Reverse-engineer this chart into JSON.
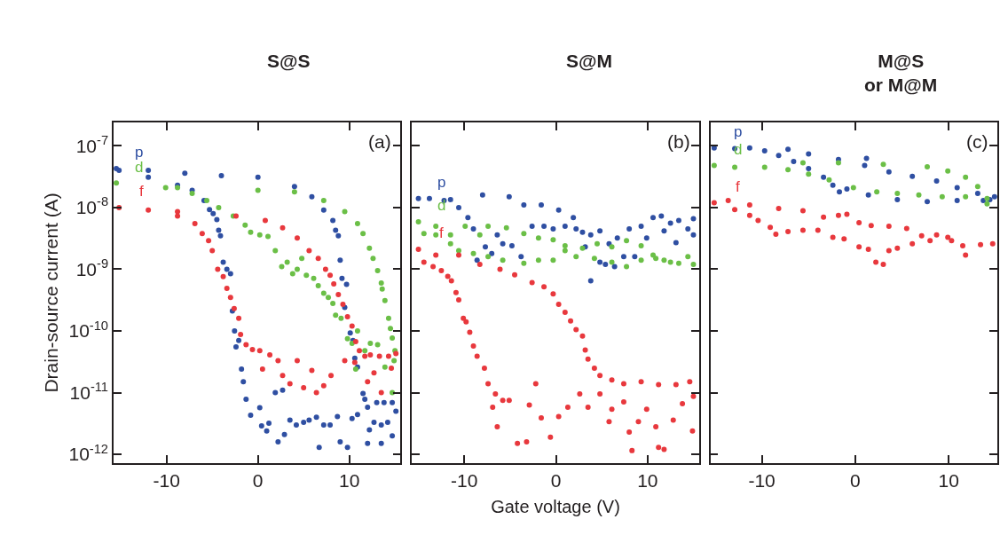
{
  "chart_data": [
    {
      "type": "scatter",
      "ylabel": "Drain-source current (A)",
      "annotations": [
        "(a)",
        "S@S"
      ],
      "log": "y",
      "marker": "circle",
      "grid": false,
      "legend": false,
      "xlim": [
        -15.8,
        15.6
      ],
      "xticks": [
        -10,
        0,
        10
      ],
      "ylim": [
        7.2e-13,
        2.4e-07
      ],
      "yticks": [
        {
          "value": 1e-12,
          "label": "10$^{-12}$"
        },
        {
          "value": 1e-11,
          "label": "10$^{-11}$"
        },
        {
          "value": 1e-10,
          "label": "10$^{-10}$"
        },
        {
          "value": 1e-09,
          "label": "10$^{-9}$"
        },
        {
          "value": 1e-08,
          "label": "10$^{-8}$"
        },
        {
          "value": 1e-07,
          "label": "10$^{-7}$"
        }
      ],
      "series": [
        {
          "name": "p",
          "color": "#2f4fa2",
          "x": [
            -15.5,
            -12,
            -8,
            -4,
            0,
            4,
            5.9,
            7.2,
            8.2,
            8.5,
            8.8,
            9.0,
            9.2,
            9.7,
            9.5,
            10.1,
            10.4,
            10.6,
            10.9,
            11.5,
            11.7,
            12.0,
            12.2,
            12.0,
            12.7,
            13.0,
            13.5,
            13.5,
            13.8,
            14.2,
            14.7,
            14.7,
            15.1,
            10.9,
            10.3,
            9.8,
            9.0,
            8.7,
            7.9,
            7.2,
            6.7,
            6.4,
            5.6,
            5.0,
            4.2,
            3.5,
            2.9,
            2.7,
            1.9,
            2.2,
            1.2,
            0.96,
            0.4,
            0.2,
            -0.8,
            -1.3,
            -1.6,
            -1.8,
            -2.1,
            -2.4,
            -2.56,
            -2.8,
            -3.0,
            -3.4,
            -3.8,
            -4.1,
            -4.3,
            -4.5,
            -4.9,
            -5.3,
            -5.9,
            -7.2,
            -8.8,
            -12,
            -15.2
          ],
          "values": [
            4.3e-08,
            4e-08,
            3.6e-08,
            3.3e-08,
            3.1e-08,
            2.2e-08,
            1.5e-08,
            9.1e-09,
            6.2e-09,
            4.3e-09,
            3.5e-09,
            1.4e-09,
            7.1e-10,
            5.7e-10,
            2.4e-10,
            9.3e-11,
            7e-11,
            3.6e-11,
            2.6e-11,
            9.7e-12,
            7.8e-12,
            5.8e-12,
            2.5e-12,
            1.5e-12,
            3.3e-12,
            6.9e-12,
            3e-12,
            1.5e-12,
            6.9e-12,
            3.3e-12,
            6.9e-12,
            2e-12,
            5e-12,
            4.4e-12,
            3.8e-12,
            1.3e-12,
            1.6e-12,
            4.1e-12,
            3e-12,
            3e-12,
            1.3e-12,
            4e-12,
            3.6e-12,
            3.3e-12,
            3e-12,
            3.6e-12,
            2.1e-12,
            1.1e-11,
            1e-11,
            1.6e-12,
            3.2e-12,
            2.4e-12,
            2.9e-12,
            5.7e-12,
            4.3e-12,
            7.8e-12,
            1.5e-11,
            2.4e-11,
            7e-11,
            5.5e-11,
            1e-10,
            2.1e-10,
            8.5e-10,
            1e-09,
            1.3e-09,
            3.5e-09,
            4.3e-09,
            6.4e-09,
            8e-09,
            9.3e-09,
            1.3e-08,
            1.9e-08,
            2.3e-08,
            3.1e-08,
            4e-08
          ]
        },
        {
          "name": "d",
          "color": "#6bbf47",
          "x": [
            -15.5,
            -8.8,
            0,
            4,
            7.2,
            9.5,
            10.9,
            11.5,
            12.2,
            12.6,
            13.1,
            13.5,
            13.6,
            13.9,
            14.3,
            14.5,
            14.7,
            15.0,
            14.9,
            14.7,
            13.9,
            13.1,
            12.3,
            11.7,
            10.9,
            10.7,
            10.3,
            9.8,
            9.1,
            8.5,
            8.2,
            7.7,
            7.2,
            6.6,
            6.1,
            5.3,
            4.8,
            4.3,
            3.8,
            3.2,
            2.6,
            1.9,
            1.1,
            0.2,
            -0.8,
            -1.4,
            -2.7,
            -4.3,
            -5.6,
            -7.2,
            -10.1
          ],
          "values": [
            2.5e-08,
            2.1e-08,
            1.9e-08,
            1.8e-08,
            1.3e-08,
            8.6e-09,
            5.5e-09,
            3.8e-09,
            2.2e-09,
            1.5e-09,
            9.5e-10,
            6e-10,
            4.8e-10,
            3.1e-10,
            1.6e-10,
            1.1e-10,
            7.7e-11,
            4.8e-11,
            3.3e-11,
            1e-11,
            2.6e-11,
            6e-11,
            6.3e-11,
            4.8e-11,
            1e-10,
            2.4e-11,
            6.3e-11,
            7.5e-11,
            1.6e-10,
            1.8e-10,
            2.8e-10,
            3.5e-10,
            4.1e-10,
            5.4e-10,
            7.1e-10,
            8e-10,
            1.5e-09,
            1e-09,
            8.5e-10,
            1.3e-09,
            1.1e-09,
            2e-09,
            3.4e-09,
            3.6e-09,
            4e-09,
            5.2e-09,
            7.3e-09,
            1e-08,
            1.3e-08,
            1.7e-08,
            2.1e-08
          ]
        },
        {
          "name": "f",
          "color": "#e8383d",
          "x": [
            -15.2,
            -8.8,
            -2.4,
            0.8,
            2.7,
            4.3,
            5.6,
            6.6,
            7.4,
            7.9,
            8.3,
            8.8,
            9.3,
            9.8,
            10.3,
            10.7,
            11.1,
            11.7,
            12.3,
            13.3,
            14.3,
            15.1,
            14.6,
            13.5,
            12.7,
            12.0,
            10.6,
            9.5,
            8.0,
            7.2,
            6.4,
            5.9,
            5.0,
            4.3,
            3.5,
            2.7,
            2.2,
            1.3,
            0.5,
            0.2,
            -0.6,
            -1.3,
            -1.9,
            -2.1,
            -2.6,
            -3.0,
            -3.4,
            -3.8,
            -4.4,
            -5.0,
            -5.4,
            -6.1,
            -6.9,
            -8.8,
            -12
          ],
          "values": [
            1e-08,
            8.6e-09,
            7.3e-09,
            6.2e-09,
            4.7e-09,
            3.2e-09,
            2e-09,
            1.5e-09,
            1e-09,
            8e-10,
            5.8e-10,
            3.9e-10,
            2.7e-10,
            1.7e-10,
            1.2e-10,
            6.7e-11,
            4.8e-11,
            3.9e-11,
            4.1e-11,
            3.9e-11,
            3.9e-11,
            4.3e-11,
            2.5e-11,
            1e-11,
            2.1e-11,
            1.5e-11,
            3.1e-11,
            3.3e-11,
            1.9e-11,
            1.3e-11,
            1e-11,
            2.3e-11,
            1.2e-11,
            3.3e-11,
            1.4e-11,
            1.9e-11,
            3.3e-11,
            4.1e-11,
            2.4e-11,
            4.8e-11,
            5e-11,
            6e-11,
            8.8e-11,
            1.6e-10,
            2.3e-10,
            3.5e-10,
            4.9e-10,
            7.6e-10,
            1e-09,
            2e-09,
            2.9e-09,
            3.8e-09,
            5.5e-09,
            7.3e-09,
            9.1e-09
          ]
        }
      ]
    },
    {
      "type": "scatter",
      "xlabel": "Gate voltage (V)",
      "annotations": [
        "(b)",
        "S@M"
      ],
      "log": "y",
      "marker": "circle",
      "grid": false,
      "legend": false,
      "tick_labels": "x",
      "xlim": [
        -15.7,
        15.6
      ],
      "xticks": [
        -10,
        0,
        10
      ],
      "ylim": [
        7.2e-13,
        2.4e-07
      ],
      "yticks": [
        {
          "value": 1e-12,
          "label": null
        },
        {
          "value": 1e-11,
          "label": null
        },
        {
          "value": 1e-10,
          "label": null
        },
        {
          "value": 1e-09,
          "label": null
        },
        {
          "value": 1e-08,
          "label": null
        },
        {
          "value": 1e-07,
          "label": null
        }
      ],
      "series": [
        {
          "name": "p",
          "color": "#2f4fa2",
          "x": [
            -15.0,
            -11.5,
            -8.0,
            -5.1,
            -3.5,
            -1.6,
            0.3,
            1.9,
            2.9,
            3.8,
            4.8,
            5.8,
            6.7,
            8.0,
            9.3,
            10.6,
            11.5,
            12.5,
            13.4,
            14.4,
            15.0,
            15.0,
            13.1,
            11.8,
            9.9,
            8.6,
            7.4,
            6.4,
            5.4,
            4.8,
            3.8,
            3.2,
            2.2,
            1.0,
            -0.3,
            -1.3,
            -2.6,
            -3.8,
            -4.8,
            -5.8,
            -6.4,
            -7.0,
            -7.7,
            -8.6,
            -9.0,
            -9.6,
            -10.6,
            -12.2,
            -13.8
          ],
          "values": [
            1.4e-08,
            1.35e-08,
            1.6e-08,
            1.5e-08,
            1.1e-08,
            1.1e-08,
            9.1e-09,
            6.9e-09,
            4e-09,
            3.6e-09,
            4.2e-09,
            2.6e-09,
            3.2e-09,
            4.5e-09,
            5e-09,
            6.9e-09,
            7.3e-09,
            5.6e-09,
            6.2e-09,
            4.5e-09,
            6.6e-09,
            3.6e-09,
            2.7e-09,
            4.2e-09,
            3.2e-09,
            1.6e-09,
            1.6e-09,
            1.1e-09,
            1.2e-09,
            1.3e-09,
            6.5e-10,
            2.3e-09,
            4.5e-09,
            5e-09,
            4.5e-09,
            5e-09,
            5e-09,
            1.6e-09,
            2.4e-09,
            2.6e-09,
            3.6e-09,
            1.8e-09,
            2.3e-09,
            1.4e-09,
            4.5e-09,
            6.9e-09,
            1e-08,
            1.3e-08,
            1.4e-08
          ]
        },
        {
          "name": "d",
          "color": "#6bbf47",
          "x": [
            -15.0,
            -14.4,
            -13.1,
            -11.5,
            -9.9,
            -8.3,
            -7.4,
            -5.4,
            -3.5,
            -1.9,
            -0.3,
            1.0,
            2.9,
            4.5,
            6.1,
            7.7,
            9.3,
            10.6,
            11.8,
            13.4,
            15.0,
            14.4,
            12.5,
            10.9,
            9.3,
            7.7,
            6.1,
            4.2,
            2.2,
            1.0,
            -0.3,
            -1.9,
            -3.5,
            -5.8,
            -7.4,
            -9.0,
            -10.6,
            -11.5,
            -13.1
          ],
          "values": [
            5.9e-09,
            3.8e-09,
            5e-09,
            3.6e-09,
            5e-09,
            3.6e-09,
            5e-09,
            4.7e-09,
            3.8e-09,
            3.2e-09,
            3e-09,
            2.4e-09,
            2.2e-09,
            2.6e-09,
            2.3e-09,
            2.9e-09,
            2.4e-09,
            1.7e-09,
            1.4e-09,
            1.25e-09,
            1.2e-09,
            1.6e-09,
            1.3e-09,
            1.5e-09,
            1.4e-09,
            1.1e-09,
            1.3e-09,
            1.5e-09,
            1.6e-09,
            2e-09,
            1.4e-09,
            1.4e-09,
            1.25e-09,
            1.4e-09,
            1.6e-09,
            1.8e-09,
            2e-09,
            2.6e-09,
            3.6e-09
          ]
        },
        {
          "name": "f",
          "color": "#e8383d",
          "x": [
            -15.0,
            -13.1,
            -10.6,
            -8.3,
            -6.1,
            -4.5,
            -2.6,
            -1.3,
            -0.3,
            0.3,
            1.0,
            1.6,
            2.2,
            2.9,
            3.2,
            3.5,
            4.2,
            4.8,
            6.1,
            7.4,
            9.3,
            11.2,
            13.1,
            14.6,
            15.0,
            14.9,
            13.8,
            12.8,
            11.8,
            11.2,
            10.9,
            9.9,
            9.0,
            8.3,
            8.0,
            7.4,
            6.1,
            5.8,
            4.8,
            3.5,
            2.6,
            1.3,
            0.3,
            -0.6,
            -1.6,
            -2.2,
            -2.9,
            -3.2,
            -4.2,
            -5.1,
            -5.8,
            -6.4,
            -6.9,
            -6.6,
            -7.4,
            -7.8,
            -8.6,
            -9.0,
            -9.4,
            -9.8,
            -10.1,
            -10.6,
            -10.9,
            -11.4,
            -11.8,
            -12.5,
            -13.4,
            -14.4
          ],
          "values": [
            2.1e-09,
            1.7e-09,
            1.7e-09,
            1.2e-09,
            1e-09,
            8.1e-10,
            6.1e-10,
            5.2e-10,
            4e-10,
            2.7e-10,
            2e-10,
            1.45e-10,
            1.05e-10,
            8.3e-11,
            4.9e-11,
            3.5e-11,
            2.5e-11,
            1.9e-11,
            1.6e-11,
            1.4e-11,
            1.5e-11,
            1.35e-11,
            1.35e-11,
            1.5e-11,
            8.7e-12,
            2.4e-12,
            6.6e-12,
            3.6e-12,
            1.2e-12,
            1.3e-12,
            2.8e-12,
            5.4e-12,
            3.4e-12,
            1.15e-12,
            2.3e-12,
            7.1e-12,
            5.4e-12,
            3.4e-12,
            9.5e-12,
            5.8e-12,
            9.5e-12,
            5.8e-12,
            4.1e-12,
            1.9e-12,
            3.9e-12,
            1.4e-11,
            6.3e-12,
            1.6e-12,
            1.5e-12,
            7.5e-12,
            7.5e-12,
            2.8e-12,
            5.8e-12,
            9.5e-12,
            1.4e-11,
            2.5e-11,
            3.9e-11,
            5.7e-11,
            9.5e-11,
            1.4e-10,
            1.6e-10,
            3.2e-10,
            4.2e-10,
            6.5e-10,
            7.7e-10,
            9.5e-10,
            1.1e-09,
            1.3e-09
          ]
        }
      ]
    },
    {
      "type": "scatter",
      "annotations": [
        "(c)",
        "M@S\nor M@M"
      ],
      "log": "y",
      "marker": "circle",
      "grid": false,
      "legend": false,
      "tick_labels": "x",
      "xlim": [
        -15.5,
        15.2
      ],
      "xticks": [
        -10,
        0,
        10
      ],
      "ylim": [
        7.2e-13,
        2.4e-07
      ],
      "yticks": [
        {
          "value": 1e-12,
          "label": null
        },
        {
          "value": 1e-11,
          "label": null
        },
        {
          "value": 1e-10,
          "label": null
        },
        {
          "value": 1e-09,
          "label": null
        },
        {
          "value": 1e-08,
          "label": null
        },
        {
          "value": 1e-07,
          "label": null
        }
      ],
      "series": [
        {
          "name": "p",
          "color": "#2f4fa2",
          "x": [
            -15.1,
            -11.3,
            -7.2,
            -5.0,
            -1.8,
            1.0,
            3.6,
            6.1,
            8.7,
            10.9,
            13.1,
            14.4,
            14.9,
            13.7,
            10.9,
            7.7,
            4.5,
            1.4,
            -0.9,
            -2.4,
            -3.4,
            -5.0,
            -6.6,
            -8.2,
            -9.7,
            -12.9,
            -1.7,
            1.2
          ],
          "values": [
            9.3e-08,
            9.3e-08,
            8.8e-08,
            7.4e-08,
            6e-08,
            4.8e-08,
            3.8e-08,
            3.2e-08,
            2.7e-08,
            2.1e-08,
            1.7e-08,
            1.35e-08,
            1.5e-08,
            1.3e-08,
            1.3e-08,
            1.25e-08,
            1.35e-08,
            1.6e-08,
            2e-08,
            2.3e-08,
            3.1e-08,
            4.3e-08,
            5.6e-08,
            7e-08,
            8.3e-08,
            9e-08,
            1.8e-08,
            6.3e-08
          ]
        },
        {
          "name": "d",
          "color": "#6bbf47",
          "x": [
            -15.1,
            -9.7,
            -7.2,
            -5.6,
            -1.8,
            3.0,
            7.7,
            9.9,
            11.8,
            13.1,
            14.1,
            14.1,
            11.8,
            9.3,
            6.8,
            4.5,
            2.3,
            -0.2,
            -2.8,
            -5.0,
            -12.9
          ],
          "values": [
            4.8e-08,
            4.5e-08,
            4.1e-08,
            5.3e-08,
            5.3e-08,
            5e-08,
            4.6e-08,
            3.9e-08,
            3.1e-08,
            2.2e-08,
            1.4e-08,
            1.15e-08,
            1.5e-08,
            1.5e-08,
            1.6e-08,
            1.7e-08,
            1.8e-08,
            2.1e-08,
            2.8e-08,
            3.5e-08,
            4.5e-08
          ]
        },
        {
          "name": "f",
          "color": "#e8383d",
          "x": [
            -15.1,
            -13.6,
            -11.3,
            -8.2,
            -5.6,
            -3.4,
            -1.8,
            -0.9,
            0.4,
            1.7,
            3.6,
            5.5,
            7.1,
            8.7,
            10.3,
            11.5,
            13.4,
            14.7,
            11.8,
            9.9,
            8.0,
            6.1,
            4.5,
            3.6,
            3.0,
            2.2,
            1.4,
            0.4,
            -1.2,
            -2.4,
            -4.0,
            -5.6,
            -7.2,
            -8.5,
            -9.1,
            -10.4,
            -11.3,
            -12.9
          ],
          "values": [
            1.2e-08,
            1.3e-08,
            1.1e-08,
            9.7e-09,
            8.9e-09,
            7e-09,
            7.5e-09,
            7.8e-09,
            5.7e-09,
            5.1e-09,
            5e-09,
            4.6e-09,
            3.5e-09,
            3.6e-09,
            2.9e-09,
            2.4e-09,
            2.5e-09,
            2.6e-09,
            1.7e-09,
            3.3e-09,
            2.9e-09,
            2.6e-09,
            2.2e-09,
            2e-09,
            1.2e-09,
            1.3e-09,
            2.1e-09,
            2.3e-09,
            3.1e-09,
            3.3e-09,
            4.3e-09,
            4.3e-09,
            4.1e-09,
            3.7e-09,
            4.8e-09,
            6.2e-09,
            7.5e-09,
            9.3e-09
          ]
        }
      ]
    }
  ]
}
